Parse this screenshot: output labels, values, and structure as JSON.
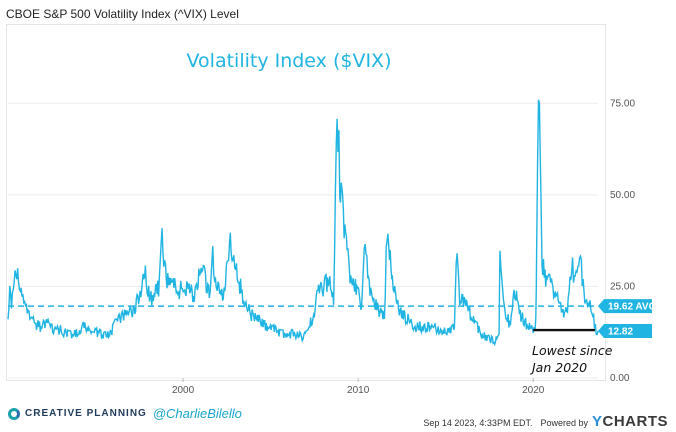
{
  "header": {
    "title": "CBOE S&P 500 Volatility Index (^VIX) Level"
  },
  "footer": {
    "brand_text": "CREATIVE PLANNING",
    "handle": "@CharlieBilello",
    "timestamp": "Sep 14 2023, 4:33PM EDT.",
    "powered_by": "Powered by",
    "ycharts_y": "Y",
    "ycharts_rest": "CHARTS"
  },
  "colors": {
    "series": "#20b4e2",
    "annotation": "#111111",
    "label_bg": "#20b4e2"
  },
  "chart_data": {
    "type": "line",
    "title": "Volatility Index ($VIX)",
    "xlabel": "",
    "ylabel": "",
    "xlim": [
      1990.0,
      2023.7
    ],
    "ylim": [
      0,
      95
    ],
    "x_ticks": [
      {
        "value": 2000,
        "label": "2000"
      },
      {
        "value": 2010,
        "label": "2010"
      },
      {
        "value": 2020,
        "label": "2020"
      }
    ],
    "y_ticks": [
      {
        "value": 0,
        "label": "0.00"
      },
      {
        "value": 25,
        "label": "25.00"
      },
      {
        "value": 50,
        "label": "50.00"
      },
      {
        "value": 75,
        "label": "75.00"
      }
    ],
    "grid": "horizontal",
    "series": [
      {
        "name": "",
        "x": [
          1990.0,
          1990.1,
          1990.2,
          1990.4,
          1990.6,
          1990.7,
          1990.9,
          1991.1,
          1991.3,
          1991.5,
          1991.8,
          1992.2,
          1992.6,
          1993.0,
          1993.5,
          1994.0,
          1994.3,
          1994.7,
          1995.2,
          1995.8,
          1996.3,
          1996.7,
          1997.2,
          1997.5,
          1997.8,
          1997.95,
          1998.3,
          1998.6,
          1998.75,
          1998.85,
          1999.0,
          1999.3,
          1999.7,
          2000.0,
          2000.3,
          2000.6,
          2000.9,
          2001.2,
          2001.5,
          2001.7,
          2001.8,
          2002.0,
          2002.3,
          2002.55,
          2002.7,
          2002.8,
          2003.0,
          2003.2,
          2003.5,
          2003.9,
          2004.3,
          2004.8,
          2005.3,
          2005.8,
          2006.4,
          2006.9,
          2007.2,
          2007.5,
          2007.7,
          2008.0,
          2008.3,
          2008.6,
          2008.75,
          2008.85,
          2008.95,
          2009.2,
          2009.5,
          2009.8,
          2010.2,
          2010.4,
          2010.55,
          2010.8,
          2011.2,
          2011.5,
          2011.65,
          2011.75,
          2012.0,
          2012.4,
          2012.8,
          2013.3,
          2013.8,
          2014.3,
          2014.8,
          2015.2,
          2015.5,
          2015.65,
          2015.8,
          2016.1,
          2016.5,
          2016.9,
          2017.3,
          2017.8,
          2018.05,
          2018.1,
          2018.3,
          2018.7,
          2018.9,
          2019.0,
          2019.3,
          2019.7,
          2020.0,
          2020.15,
          2020.2,
          2020.3,
          2020.5,
          2020.8,
          2021.0,
          2021.3,
          2021.7,
          2022.0,
          2022.2,
          2022.4,
          2022.6,
          2022.8,
          2023.0,
          2023.2,
          2023.4,
          2023.55,
          2023.7
        ],
        "y": [
          18,
          23,
          21,
          29,
          27,
          24,
          20,
          19,
          17,
          15,
          14,
          15,
          13,
          13,
          12,
          12,
          14,
          13,
          12,
          12,
          16,
          17,
          19,
          22,
          30,
          24,
          21,
          25,
          40,
          35,
          28,
          26,
          24,
          24,
          26,
          22,
          27,
          28,
          22,
          34,
          26,
          24,
          22,
          34,
          38,
          30,
          31,
          26,
          21,
          17,
          16,
          14,
          13,
          12,
          12,
          11,
          14,
          18,
          25,
          24,
          27,
          22,
          60,
          69,
          54,
          42,
          29,
          25,
          20,
          38,
          28,
          22,
          18,
          18,
          40,
          35,
          26,
          18,
          16,
          14,
          14,
          14,
          13,
          13,
          15,
          35,
          20,
          22,
          16,
          13,
          11,
          10,
          12,
          33,
          20,
          14,
          22,
          23,
          17,
          14,
          13,
          15,
          40,
          82,
          31,
          25,
          27,
          22,
          18,
          20,
          31,
          27,
          34,
          28,
          21,
          20,
          17,
          13.5,
          12.82
        ],
        "avg": 19.62,
        "last": 12.82
      }
    ],
    "annotations": [
      {
        "type": "avg_line",
        "value": 19.62,
        "label": "19.62 AVG"
      },
      {
        "type": "last_value",
        "value": 12.82,
        "label": "12.82"
      },
      {
        "type": "callout",
        "text_lines": [
          "Lowest since",
          "Jan 2020"
        ],
        "x_start": 2020.0
      }
    ]
  }
}
